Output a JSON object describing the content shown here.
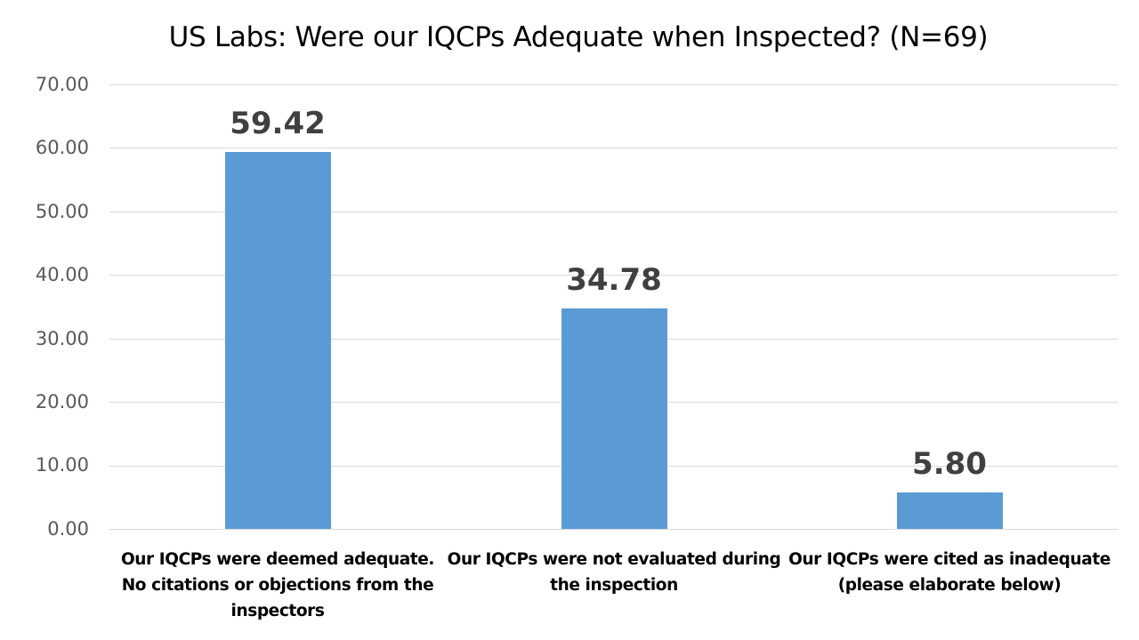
{
  "chart_data": {
    "type": "bar",
    "title": "US Labs: Were our IQCPs Adequate when Inspected? (N=69)",
    "xlabel": "",
    "ylabel": "",
    "ylim": [
      0,
      70
    ],
    "yticks": [
      "0.00",
      "10.00",
      "20.00",
      "30.00",
      "40.00",
      "50.00",
      "60.00",
      "70.00"
    ],
    "grid": true,
    "legend": "none",
    "bar_color": "#5b9bd5",
    "categories": [
      "Our IQCPs were deemed adequate.  No citations or objections from the inspectors",
      "Our IQCPs were not evaluated during the inspection",
      "Our IQCPs were cited as inadequate (please elaborate below)"
    ],
    "values": [
      59.42,
      34.78,
      5.8
    ],
    "value_labels": [
      "59.42",
      "34.78",
      "5.80"
    ]
  },
  "labels": {
    "cat0_line1": "Our IQCPs were deemed adequate.",
    "cat0_line2": "No citations or objections from the",
    "cat0_line3": "inspectors",
    "cat1_line1": "Our IQCPs were not evaluated during",
    "cat1_line2": "the inspection",
    "cat2_line1": "Our IQCPs were cited as inadequate",
    "cat2_line2": "(please elaborate below)"
  }
}
